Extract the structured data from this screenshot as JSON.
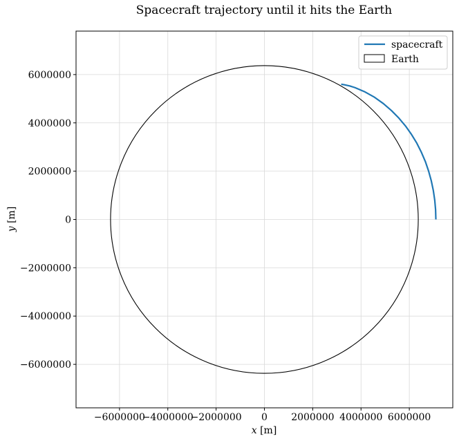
{
  "chart_data": {
    "type": "line",
    "title": "Spacecraft trajectory until it hits the Earth",
    "xlabel_var": "x",
    "xlabel_unit": "[m]",
    "ylabel_var": "y",
    "ylabel_unit": "[m]",
    "xlim": [
      -7800000,
      7800000
    ],
    "ylim": [
      -7800000,
      7800000
    ],
    "xticks": [
      -6000000,
      -4000000,
      -2000000,
      0,
      2000000,
      4000000,
      6000000
    ],
    "yticks": [
      -6000000,
      -4000000,
      -2000000,
      0,
      2000000,
      4000000,
      6000000
    ],
    "xtick_labels": [
      "−6000000",
      "−4000000",
      "−2000000",
      "0",
      "2000000",
      "4000000",
      "6000000"
    ],
    "ytick_labels": [
      "−6000000",
      "−4000000",
      "−2000000",
      "0",
      "2000000",
      "4000000",
      "6000000"
    ],
    "grid": true,
    "legend_position": "top-right",
    "series": [
      {
        "name": "spacecraft",
        "color": "#1f77b4",
        "x": [
          7100000,
          7088000,
          7053000,
          6994000,
          6910000,
          6800000,
          6664000,
          6501000,
          6310000,
          6091000,
          5843000,
          5566000,
          5260000,
          4924000,
          4560000,
          4168000,
          3750000,
          3530000,
          3300000,
          3180000
        ],
        "y": [
          0,
          400000,
          800000,
          1200000,
          1600000,
          2000000,
          2400000,
          2780000,
          3160000,
          3520000,
          3870000,
          4200000,
          4510000,
          4800000,
          5060000,
          5280000,
          5460000,
          5530000,
          5580000,
          5600000
        ]
      }
    ],
    "earth": {
      "name": "Earth",
      "center": [
        0,
        0
      ],
      "radius": 6371000,
      "edge_color": "#000000",
      "face_color": "none"
    }
  }
}
